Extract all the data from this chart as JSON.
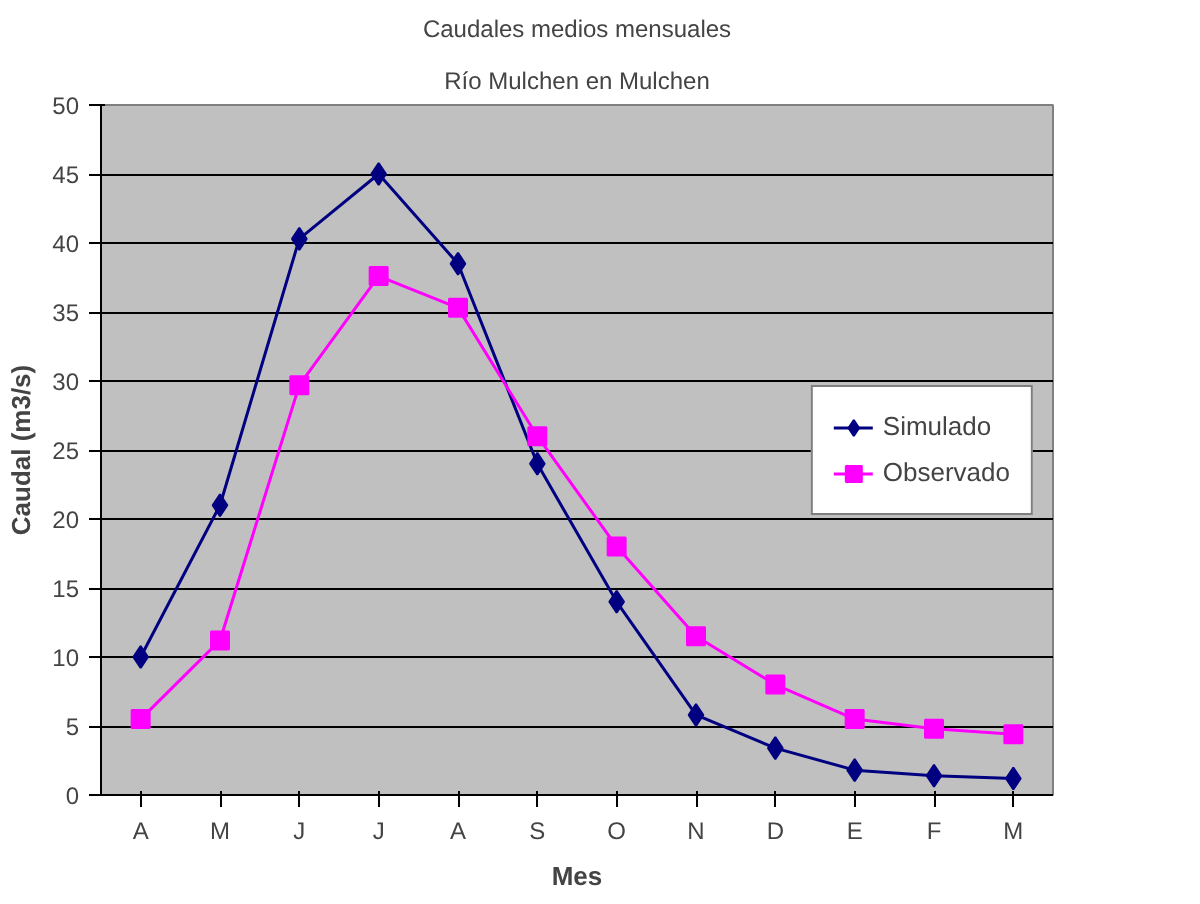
{
  "chart_data": {
    "type": "line",
    "title": "Caudales medios mensuales",
    "subtitle": "Río Mulchen en Mulchen",
    "xlabel": "Mes",
    "ylabel": "Caudal (m3/s)",
    "categories": [
      "A",
      "M",
      "J",
      "J",
      "A",
      "S",
      "O",
      "N",
      "D",
      "E",
      "F",
      "M"
    ],
    "series": [
      {
        "name": "Simulado",
        "color": "#000080",
        "marker": "diamond",
        "values": [
          10,
          21,
          40.3,
          45,
          38.5,
          24,
          14,
          5.8,
          3.4,
          1.8,
          1.4,
          1.2
        ]
      },
      {
        "name": "Observado",
        "color": "#ff00ff",
        "marker": "square",
        "values": [
          5.5,
          11.2,
          29.7,
          37.6,
          35.3,
          26,
          18,
          11.5,
          8,
          5.5,
          4.8,
          4.4
        ]
      }
    ],
    "ylim": [
      0,
      50
    ],
    "yticks": [
      0,
      5,
      10,
      15,
      20,
      25,
      30,
      35,
      40,
      45,
      50
    ],
    "grid": "y",
    "legend": "right",
    "line_style": "solid"
  }
}
